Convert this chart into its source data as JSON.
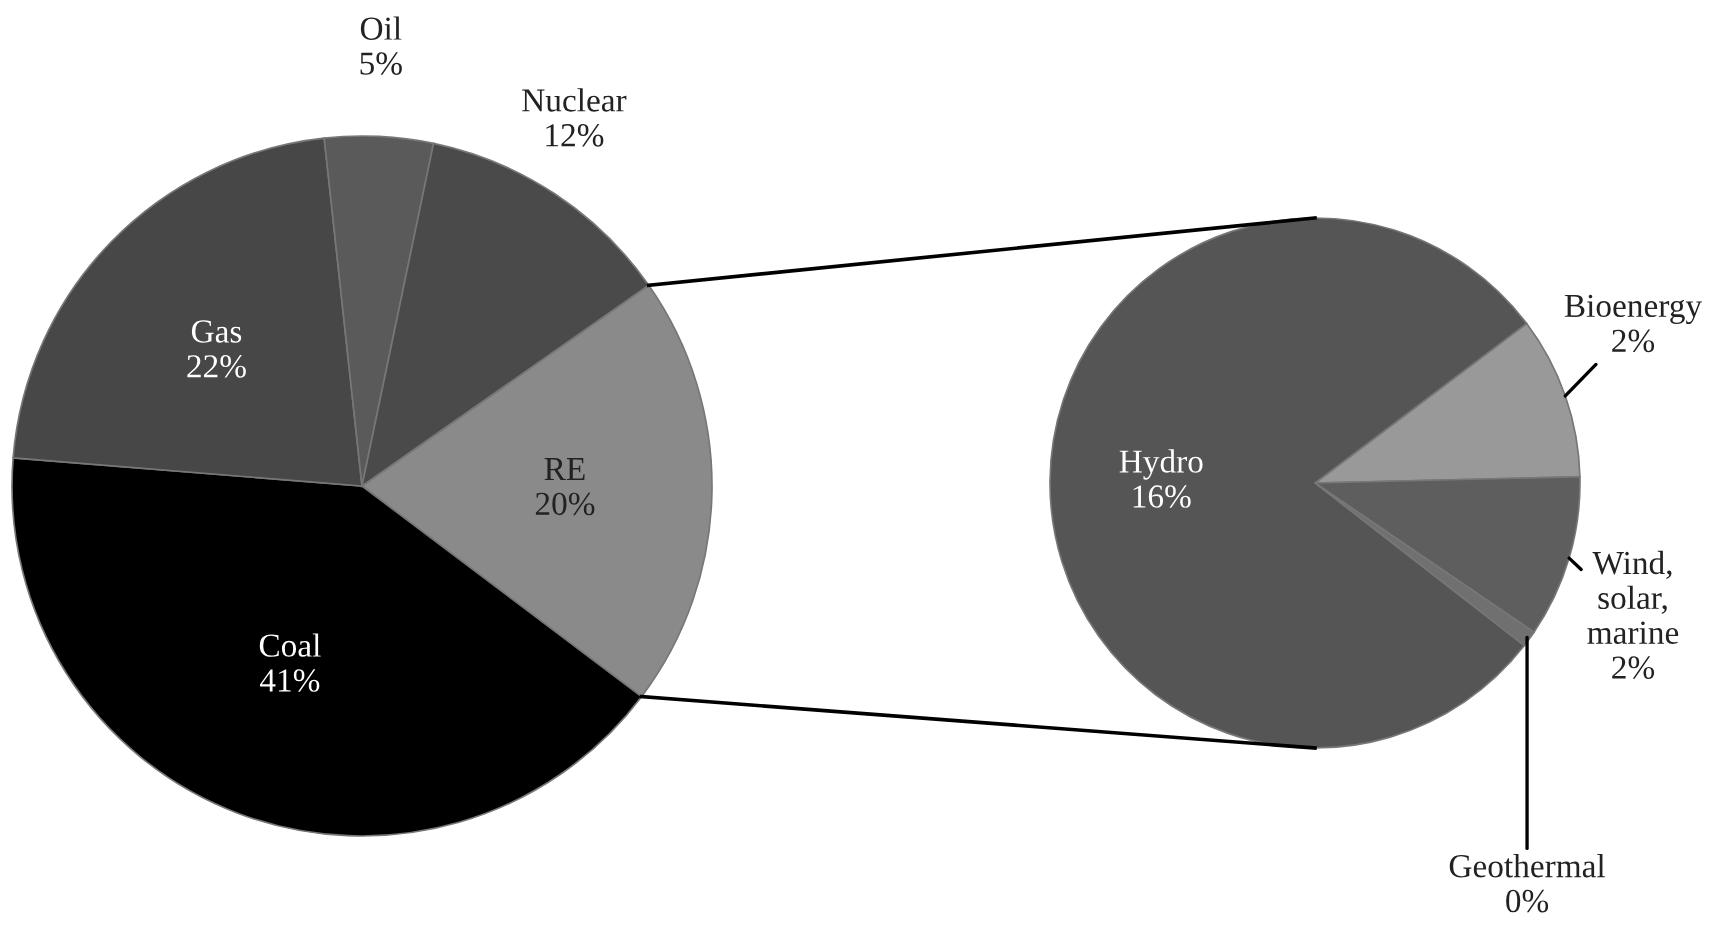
{
  "chart_data": [
    {
      "type": "pie",
      "categories": [
        "RE",
        "Coal",
        "Gas",
        "Oil",
        "Nuclear"
      ],
      "values": [
        20,
        41,
        22,
        5,
        12
      ],
      "colors": [
        "#8a8a8a",
        "#000000",
        "#474747",
        "#5a5a5a",
        "#4a4a4a"
      ],
      "value_labels": [
        "20%",
        "41%",
        "22%",
        "5%",
        "12%"
      ]
    },
    {
      "type": "pie",
      "categories": [
        "Bioenergy",
        "Wind,\nsolar,\nmarine",
        "Geothermal",
        "Hydro"
      ],
      "values": [
        2,
        2,
        0.2,
        16
      ],
      "colors": [
        "#999999",
        "#5e5e5e",
        "#707070",
        "#555555"
      ],
      "value_labels": [
        "2%",
        "2%",
        "0%",
        "16%"
      ]
    }
  ]
}
